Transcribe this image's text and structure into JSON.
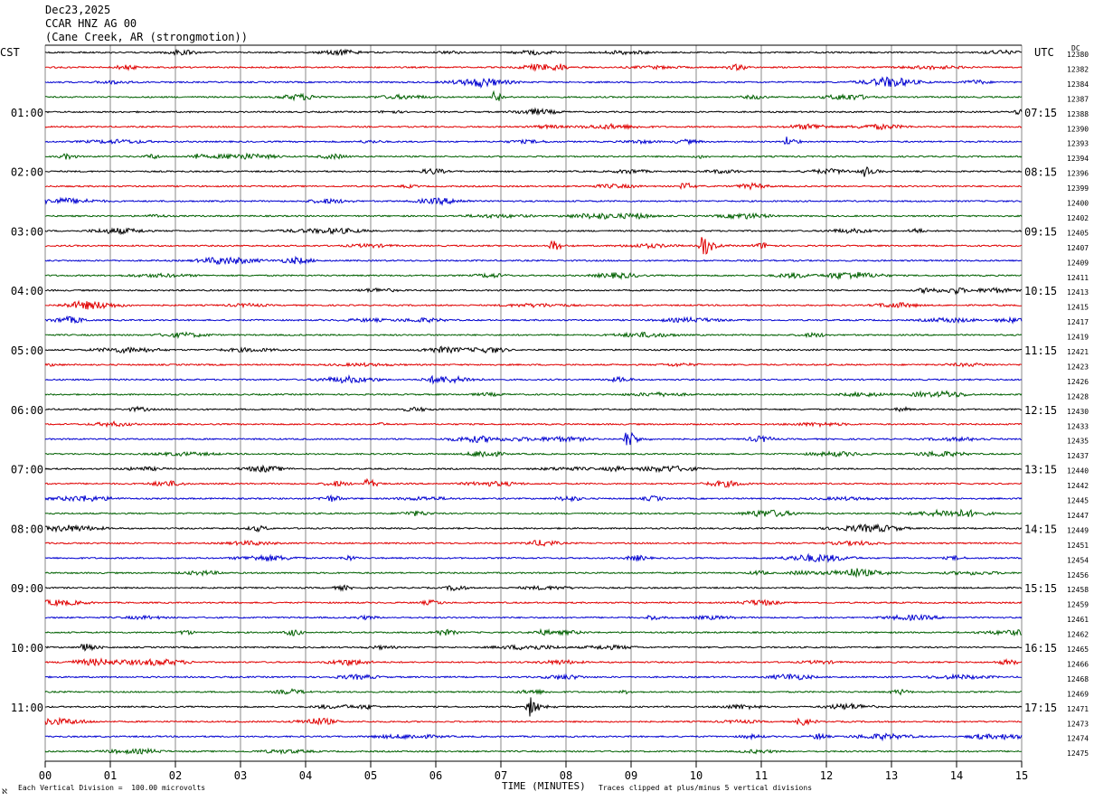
{
  "header": {
    "date": "Dec23,2025",
    "station": "CCAR HNZ AG 00",
    "location": "(Cane Creek, AR (strongmotion))"
  },
  "left_tz": "CST",
  "right_tz": "UTC",
  "dc_label": "DC",
  "footer": {
    "left": "Each Vertical Division =  100.00 microvolts",
    "right": "Traces clipped at plus/minus 5 vertical divisions",
    "corner": "ℵ"
  },
  "colors": {
    "trace_cycle": [
      "#000000",
      "#e00000",
      "#0000d0",
      "#006000"
    ],
    "grid": "#8a8a8a"
  },
  "chart_data": {
    "type": "line",
    "title": "CCAR HNZ AG 00",
    "xlabel": "TIME (MINUTES)",
    "x_ticks": [
      "00",
      "01",
      "02",
      "03",
      "04",
      "05",
      "06",
      "07",
      "08",
      "09",
      "10",
      "11",
      "12",
      "13",
      "14",
      "15"
    ],
    "xlim": [
      0,
      15
    ],
    "left_hour_labels": [
      "01:00",
      "02:00",
      "03:00",
      "04:00",
      "05:00",
      "06:00",
      "07:00",
      "08:00",
      "09:00",
      "10:00",
      "11:00"
    ],
    "right_hour_labels": [
      "07:15",
      "08:15",
      "09:15",
      "10:15",
      "11:15",
      "12:15",
      "13:15",
      "14:15",
      "15:15",
      "16:15",
      "17:15"
    ],
    "dc_offsets": [
      "12380",
      "12382",
      "12384",
      "12387",
      "12388",
      "12390",
      "12393",
      "12394",
      "12396",
      "12399",
      "12400",
      "12402",
      "12405",
      "12407",
      "12409",
      "12411",
      "12413",
      "12415",
      "12417",
      "12419",
      "12421",
      "12423",
      "12426",
      "12428",
      "12430",
      "12433",
      "12435",
      "12437",
      "12440",
      "12442",
      "12445",
      "12447",
      "12449",
      "12451",
      "12454",
      "12456",
      "12458",
      "12459",
      "12461",
      "12462",
      "12465",
      "12466",
      "12468",
      "12469",
      "12471",
      "12473",
      "12474",
      "12475"
    ],
    "events": [
      {
        "trace": 13,
        "minute": 10.1,
        "amplitude": 1.0
      },
      {
        "trace": 13,
        "minute": 7.8,
        "amplitude": 0.5
      },
      {
        "trace": 26,
        "minute": 8.95,
        "amplitude": 0.9
      },
      {
        "trace": 40,
        "minute": 0.6,
        "amplitude": 0.6
      },
      {
        "trace": 44,
        "minute": 7.45,
        "amplitude": 1.0
      },
      {
        "trace": 45,
        "minute": 11.6,
        "amplitude": 0.5
      },
      {
        "trace": 29,
        "minute": 4.95,
        "amplitude": 0.5
      },
      {
        "trace": 8,
        "minute": 12.6,
        "amplitude": 0.5
      },
      {
        "trace": 9,
        "minute": 9.8,
        "amplitude": 0.4
      },
      {
        "trace": 3,
        "minute": 6.9,
        "amplitude": 0.6
      },
      {
        "trace": 6,
        "minute": 11.4,
        "amplitude": 0.4
      },
      {
        "trace": 38,
        "minute": 9.3,
        "amplitude": 0.4
      }
    ]
  }
}
